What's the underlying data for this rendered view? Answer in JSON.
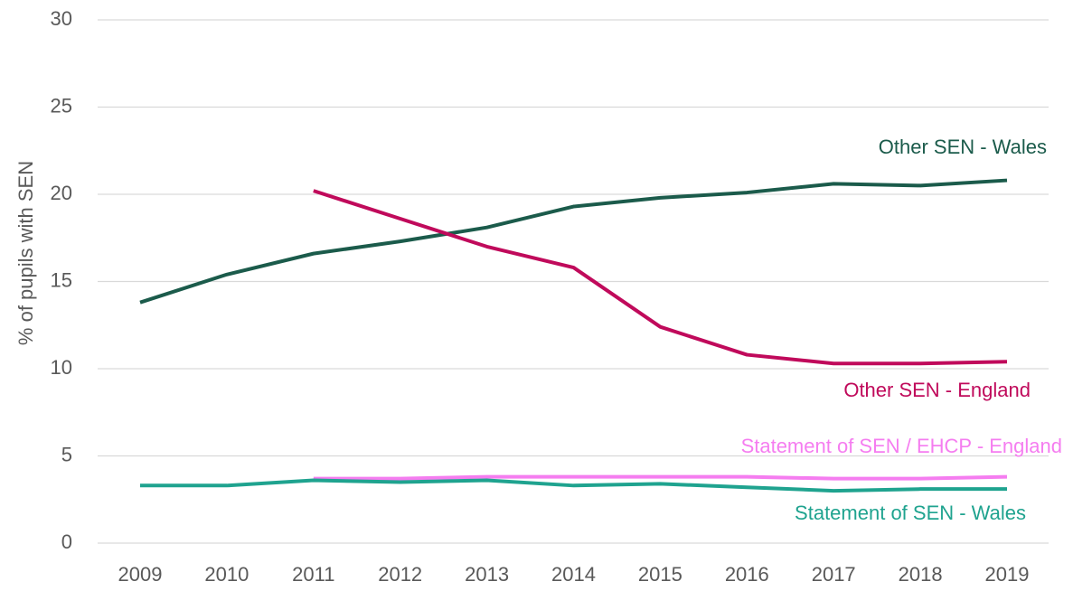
{
  "chart_data": {
    "type": "line",
    "y_label": "% of pupils with SEN",
    "categories": [
      "2009",
      "2010",
      "2011",
      "2012",
      "2013",
      "2014",
      "2015",
      "2016",
      "2017",
      "2018",
      "2019"
    ],
    "series": [
      {
        "name": "Other SEN - Wales",
        "color": "#1b5b4b",
        "values": [
          13.8,
          15.4,
          16.6,
          17.3,
          18.1,
          19.3,
          19.8,
          20.1,
          20.6,
          20.5,
          20.8
        ]
      },
      {
        "name": "Other SEN - England",
        "color": "#c00a5b",
        "values": [
          null,
          null,
          20.2,
          18.6,
          17.0,
          15.8,
          12.4,
          10.8,
          10.3,
          10.3,
          10.4
        ]
      },
      {
        "name": "Statement of SEN / EHCP - England",
        "color": "#f57df0",
        "values": [
          null,
          null,
          3.7,
          3.7,
          3.8,
          3.8,
          3.8,
          3.8,
          3.7,
          3.7,
          3.8
        ]
      },
      {
        "name": "Statement of SEN - Wales",
        "color": "#1fa38f",
        "values": [
          3.3,
          3.3,
          3.6,
          3.5,
          3.6,
          3.3,
          3.4,
          3.2,
          3.0,
          3.1,
          3.1
        ]
      }
    ],
    "ylim": [
      0,
      30
    ],
    "yticks": [
      0,
      5,
      10,
      15,
      20,
      25,
      30
    ],
    "grid": true
  }
}
